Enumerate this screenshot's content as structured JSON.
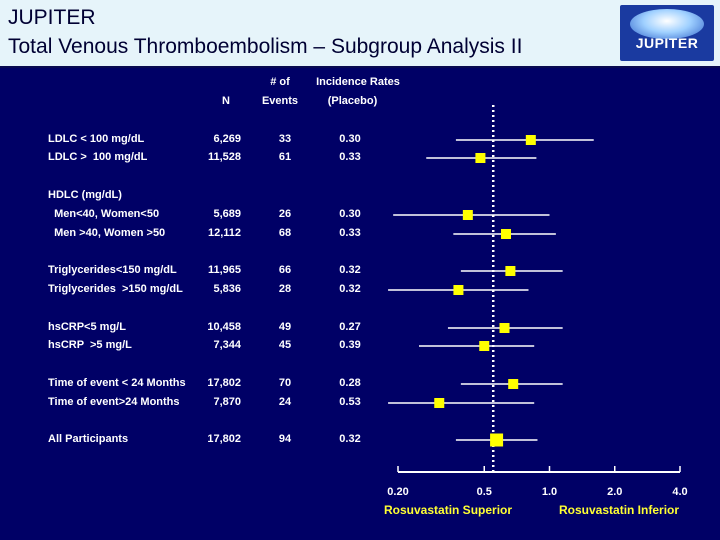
{
  "header": {
    "title": "JUPITER",
    "subtitle": "Total Venous Thromboembolism – Subgroup Analysis II",
    "logo_text": "JUPITER"
  },
  "columns": {
    "n": "N",
    "events_top": "# of",
    "events_bottom": "Events",
    "incidence_top": "Incidence Rates",
    "incidence_bottom": "(Placebo)"
  },
  "colors": {
    "background": "#000066",
    "marker": "#ffff00",
    "accent_label": "#ffff33"
  },
  "chart_data": {
    "type": "scatter",
    "subtype": "forest-plot",
    "xscale": "log",
    "xlim": [
      0.2,
      4.0
    ],
    "xticks": [
      0.2,
      0.5,
      1.0,
      2.0,
      4.0
    ],
    "xtick_labels": [
      "0.20",
      "0.5",
      "1.0",
      "2.0",
      "4.0"
    ],
    "reference_line": 0.55,
    "left_direction_label": "Rosuvastatin Superior",
    "right_direction_label": "Rosuvastatin Inferior",
    "rows": [
      {
        "label": "LDLC < 100 mg/dL",
        "n": "6,269",
        "events": "33",
        "incidence": "0.30",
        "hr": 0.82,
        "ci": [
          0.37,
          1.6
        ]
      },
      {
        "label": "LDLC >  100 mg/dL",
        "n": "11,528",
        "events": "61",
        "incidence": "0.33",
        "hr": 0.48,
        "ci": [
          0.27,
          0.87
        ]
      },
      {
        "label": "HDLC (mg/dL)",
        "header": true
      },
      {
        "label": "  Men<40, Women<50",
        "n": "5,689",
        "events": "26",
        "incidence": "0.30",
        "hr": 0.42,
        "ci": [
          0.19,
          1.0
        ]
      },
      {
        "label": "  Men >40, Women >50",
        "n": "12,112",
        "events": "68",
        "incidence": "0.33",
        "hr": 0.63,
        "ci": [
          0.36,
          1.07
        ]
      },
      {
        "label": "Triglycerides<150 mg/dL",
        "n": "11,965",
        "events": "66",
        "incidence": "0.32",
        "hr": 0.66,
        "ci": [
          0.39,
          1.15
        ]
      },
      {
        "label": "Triglycerides  >150 mg/dL",
        "n": "5,836",
        "events": "28",
        "incidence": "0.32",
        "hr": 0.38,
        "ci": [
          0.18,
          0.8
        ]
      },
      {
        "label": "hsCRP<5 mg/L",
        "n": "10,458",
        "events": "49",
        "incidence": "0.27",
        "hr": 0.62,
        "ci": [
          0.34,
          1.15
        ]
      },
      {
        "label": "hsCRP  >5 mg/L",
        "n": "7,344",
        "events": "45",
        "incidence": "0.39",
        "hr": 0.5,
        "ci": [
          0.25,
          0.85
        ]
      },
      {
        "label": "Time of event < 24 Months",
        "n": "17,802",
        "events": "70",
        "incidence": "0.28",
        "hr": 0.68,
        "ci": [
          0.39,
          1.15
        ]
      },
      {
        "label": "Time of event>24 Months",
        "n": "7,870",
        "events": "24",
        "incidence": "0.53",
        "hr": 0.31,
        "ci": [
          0.18,
          0.85
        ]
      },
      {
        "label": "All Participants",
        "n": "17,802",
        "events": "94",
        "incidence": "0.32",
        "hr": 0.57,
        "ci": [
          0.37,
          0.88
        ],
        "overall": true
      }
    ]
  }
}
